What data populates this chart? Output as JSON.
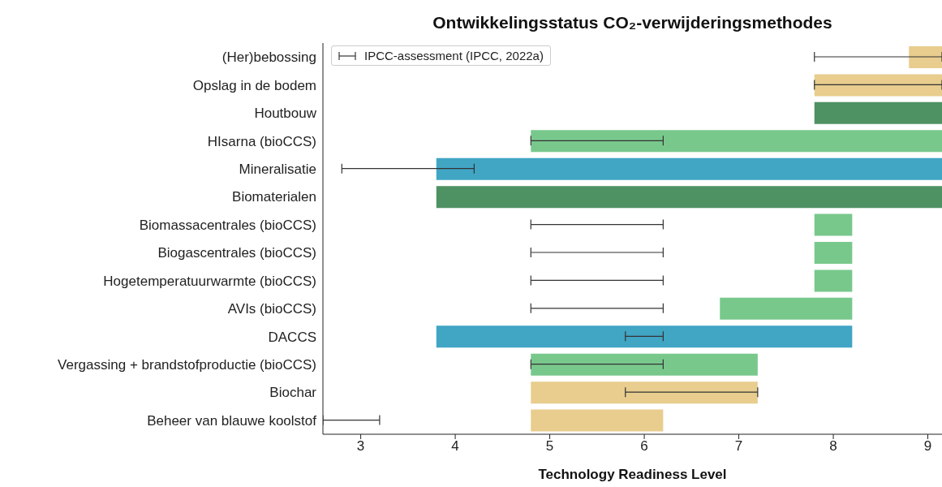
{
  "chart_data": {
    "type": "bar",
    "orientation": "horizontal",
    "title": "Ontwikkelingsstatus CO₂-verwijderingsmethodes",
    "xlabel": "Technology Readiness Level",
    "categories": [
      "(Her)bebossing",
      "Opslag in de bodem",
      "Houtbouw",
      "HIsarna (bioCCS)",
      "Mineralisatie",
      "Biomaterialen",
      "Biomassacentrales (bioCCS)",
      "Biogascentrales (bioCCS)",
      "Hogetemperatuurwarmte (bioCCS)",
      "AVIs (bioCCS)",
      "DACCS",
      "Vergassing + brandstofproductie (bioCCS)",
      "Biochar",
      "Beheer van blauwe koolstof"
    ],
    "series": [
      {
        "base": [
          8.8,
          7.8,
          7.8,
          4.8,
          3.8,
          3.8,
          7.8,
          7.8,
          7.8,
          6.8,
          3.8,
          4.8,
          4.8,
          4.8
        ],
        "values": [
          0.35,
          1.35,
          1.35,
          4.35,
          5.35,
          5.35,
          0.4,
          0.4,
          0.4,
          1.4,
          4.4,
          2.4,
          2.4,
          1.4
        ],
        "colors": [
          "#e8cd8e",
          "#e8cd8e",
          "#4e9163",
          "#78c88c",
          "#41a5c4",
          "#4e9163",
          "#78c88c",
          "#78c88c",
          "#78c88c",
          "#78c88c",
          "#41a5c4",
          "#78c88c",
          "#e8cd8e",
          "#e8cd8e"
        ],
        "errors": [
          [
            7.8,
            9.15
          ],
          [
            7.8,
            9.15
          ],
          null,
          [
            4.8,
            6.2
          ],
          [
            2.8,
            4.2
          ],
          null,
          [
            4.8,
            6.2
          ],
          [
            4.8,
            6.2
          ],
          [
            4.8,
            6.2
          ],
          [
            4.8,
            6.2
          ],
          [
            5.8,
            6.2
          ],
          [
            4.8,
            6.2
          ],
          [
            5.8,
            7.2
          ],
          [
            2.6,
            3.2
          ]
        ]
      }
    ],
    "legend_title": "IPCC-assessment (IPCC, 2022a)",
    "xlim": [
      2.6,
      9.15
    ],
    "xticks": [
      3,
      4,
      5,
      6,
      7,
      8,
      9
    ]
  }
}
